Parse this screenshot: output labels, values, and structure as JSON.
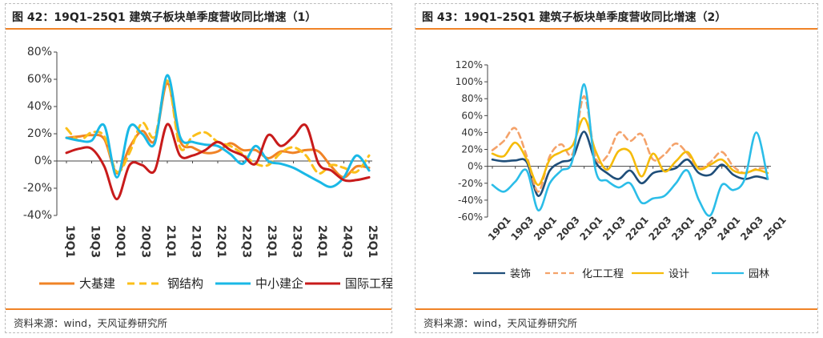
{
  "left": {
    "title": "图 42：19Q1–25Q1 建筑子板块单季度营收同比增速（1）",
    "source": "资料来源：wind，天风证券研究所"
  },
  "right": {
    "title": "图 43：19Q1–25Q1 建筑子板块单季度营收同比增速（2）",
    "source": "资料来源：wind，天风证券研究所"
  },
  "chart_data": [
    {
      "type": "line",
      "title": "",
      "x": [
        "19Q1",
        "19Q2",
        "19Q3",
        "19Q4",
        "20Q1",
        "20Q2",
        "20Q3",
        "20Q4",
        "21Q1",
        "21Q2",
        "21Q3",
        "21Q4",
        "22Q1",
        "22Q2",
        "22Q3",
        "22Q4",
        "23Q1",
        "23Q2",
        "23Q3",
        "23Q4",
        "24Q1",
        "24Q2",
        "24Q3",
        "24Q4",
        "25Q1"
      ],
      "x_tick_labels": [
        "19Q1",
        "19Q3",
        "20Q1",
        "20Q3",
        "21Q1",
        "21Q3",
        "22Q1",
        "22Q3",
        "23Q1",
        "23Q3",
        "24Q1",
        "24Q3",
        "25Q1"
      ],
      "ylim": [
        -40,
        80
      ],
      "yticks": [
        -40,
        -20,
        0,
        20,
        40,
        60,
        80
      ],
      "ytick_labels": [
        "-40%",
        "-20%",
        "0%",
        "20%",
        "40%",
        "60%",
        "80%"
      ],
      "legend_position": "bottom",
      "series": [
        {
          "name": "大基建",
          "color": "#f08326",
          "dash": "solid",
          "values": [
            17,
            18,
            19,
            16,
            -9,
            10,
            22,
            15,
            57,
            15,
            10,
            6,
            7,
            13,
            8,
            8,
            2,
            7,
            6,
            8,
            7,
            -4,
            -12,
            -4,
            -5
          ]
        },
        {
          "name": "钢结构",
          "color": "#fbbf1a",
          "dash": "dashed",
          "values": [
            24,
            15,
            21,
            18,
            -8,
            6,
            28,
            18,
            59,
            10,
            18,
            21,
            14,
            11,
            5,
            -2,
            -3,
            6,
            10,
            4,
            -9,
            -3,
            -5,
            -8,
            4
          ]
        },
        {
          "name": "中小建企",
          "color": "#1ab8e6",
          "dash": "solid",
          "values": [
            17,
            15,
            15,
            26,
            -12,
            25,
            20,
            13,
            63,
            18,
            14,
            12,
            11,
            5,
            -2,
            11,
            0,
            -2,
            -5,
            -10,
            -15,
            -19,
            -12,
            4,
            -7
          ]
        },
        {
          "name": "国际工程",
          "color": "#c81b1b",
          "dash": "solid",
          "values": [
            6,
            9,
            9,
            -4,
            -28,
            -3,
            -3,
            -7,
            27,
            4,
            4,
            8,
            14,
            8,
            4,
            -2,
            19,
            11,
            18,
            26,
            -2,
            -7,
            -14,
            -14,
            -12
          ]
        }
      ]
    },
    {
      "type": "line",
      "title": "",
      "x": [
        "19Q1",
        "19Q2",
        "19Q3",
        "19Q4",
        "20Q1",
        "20Q2",
        "20Q3",
        "20Q4",
        "21Q1",
        "21Q2",
        "21Q3",
        "21Q4",
        "22Q1",
        "22Q2",
        "22Q3",
        "22Q4",
        "23Q1",
        "23Q2",
        "23Q3",
        "23Q4",
        "24Q1",
        "24Q2",
        "24Q3",
        "24Q4",
        "25Q1"
      ],
      "x_tick_labels": [
        "19Q1",
        "19Q3",
        "20Q1",
        "20Q3",
        "21Q1",
        "21Q3",
        "22Q1",
        "22Q3",
        "23Q1",
        "23Q3",
        "24Q1",
        "24Q3",
        "25Q1"
      ],
      "ylim": [
        -60,
        120
      ],
      "yticks": [
        -60,
        -40,
        -20,
        0,
        20,
        40,
        60,
        80,
        100,
        120
      ],
      "ytick_labels": [
        "-60%",
        "-40%",
        "-20%",
        "0%",
        "20%",
        "40%",
        "60%",
        "80%",
        "100%",
        "120%"
      ],
      "legend_position": "bottom",
      "series": [
        {
          "name": "装饰",
          "color": "#1f4e79",
          "dash": "solid",
          "values": [
            8,
            6,
            7,
            5,
            -35,
            -5,
            5,
            10,
            41,
            5,
            -8,
            -15,
            -5,
            -20,
            -8,
            -5,
            -2,
            8,
            -8,
            -10,
            2,
            -10,
            -15,
            -12,
            -15
          ]
        },
        {
          "name": "化工工程",
          "color": "#f4a26a",
          "dash": "dashed",
          "values": [
            19,
            30,
            45,
            12,
            -30,
            12,
            26,
            15,
            83,
            10,
            12,
            40,
            30,
            38,
            8,
            14,
            27,
            15,
            -2,
            5,
            17,
            0,
            -8,
            -3,
            -2
          ]
        },
        {
          "name": "设计",
          "color": "#f5bb0a",
          "dash": "solid",
          "values": [
            15,
            12,
            28,
            8,
            -22,
            8,
            17,
            25,
            57,
            18,
            -4,
            18,
            17,
            -12,
            15,
            -6,
            6,
            17,
            -3,
            2,
            8,
            -5,
            -8,
            -4,
            -8
          ]
        },
        {
          "name": "园林",
          "color": "#2bbde8",
          "dash": "solid",
          "values": [
            -22,
            -30,
            -18,
            -5,
            -52,
            -20,
            -5,
            8,
            97,
            -5,
            -17,
            -25,
            -20,
            -43,
            -38,
            -35,
            -20,
            -5,
            -40,
            -58,
            -22,
            -28,
            -15,
            40,
            -15
          ]
        }
      ]
    }
  ]
}
